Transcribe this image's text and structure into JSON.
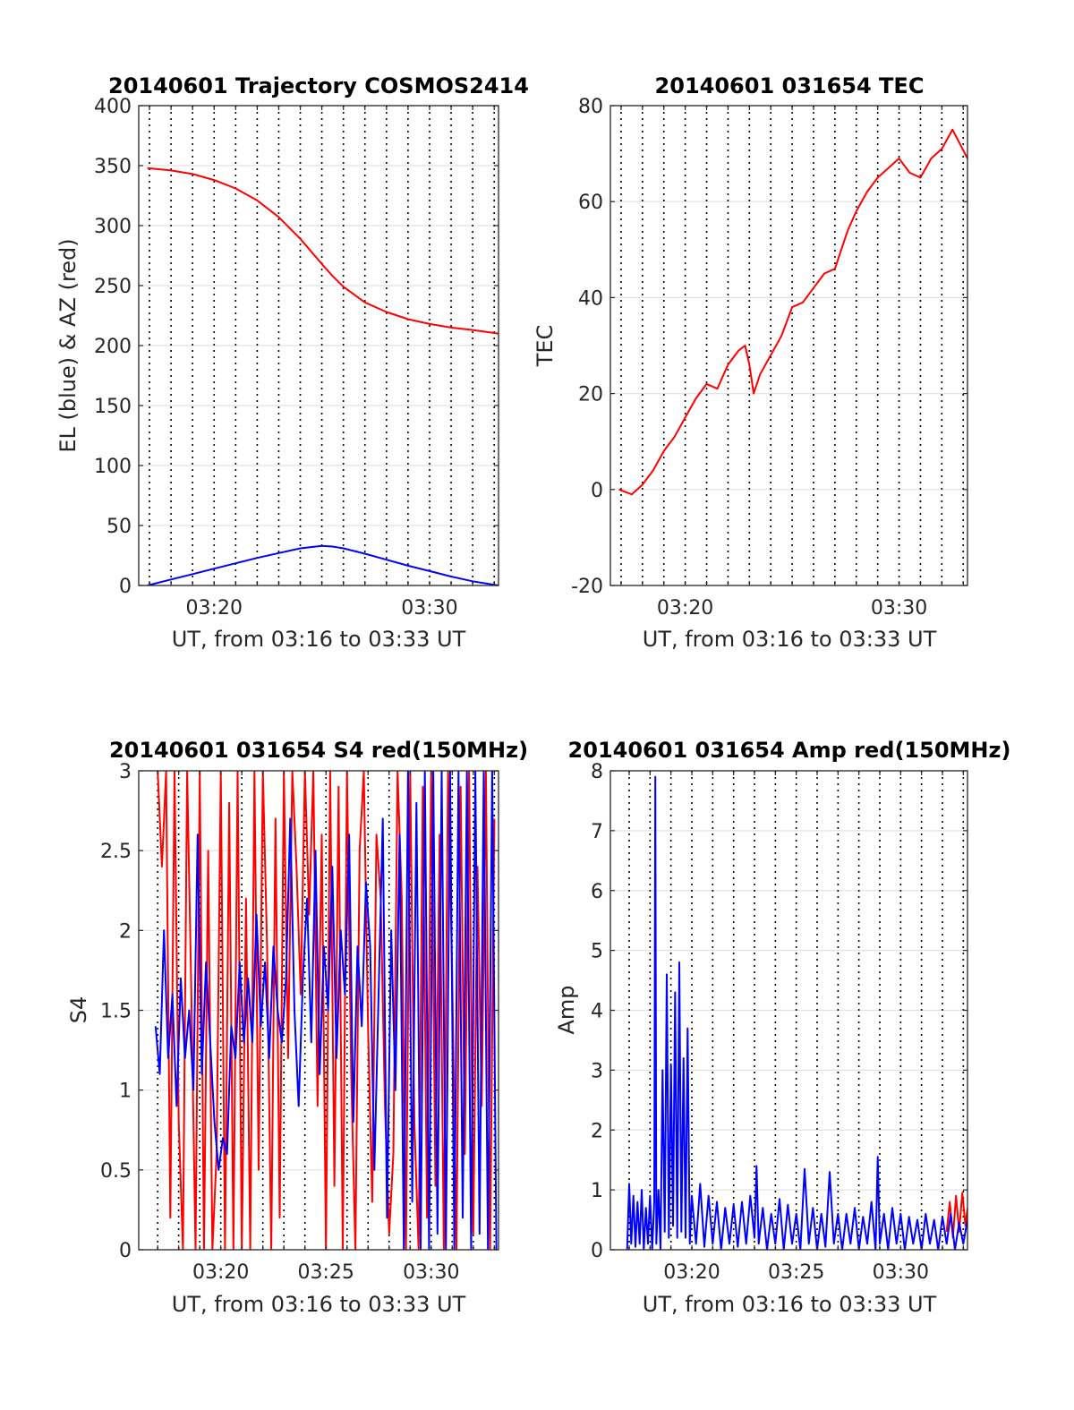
{
  "chart_data": [
    {
      "id": "trajectory",
      "type": "line",
      "title": "20140601 Trajectory COSMOS2414",
      "xlabel": "UT, from 03:16 to 03:33 UT",
      "ylabel": "EL (blue) & AZ (red)",
      "xlim": [
        16.5,
        33.2
      ],
      "ylim": [
        0,
        400
      ],
      "yticks": [
        0,
        50,
        100,
        150,
        200,
        250,
        300,
        350,
        400
      ],
      "xticks": [
        {
          "v": 20,
          "label": "03:20"
        },
        {
          "v": 30,
          "label": "03:30"
        }
      ],
      "dotted_grid_x": [
        17,
        18,
        19,
        20,
        21,
        22,
        23,
        24,
        25,
        26,
        27,
        28,
        29,
        30,
        31,
        32,
        33
      ],
      "grid": true,
      "series": [
        {
          "color": "#ff0000",
          "x": [
            16.9,
            18,
            19,
            20,
            21,
            22,
            23,
            24,
            25,
            25.5,
            26,
            27,
            28,
            29,
            30,
            31,
            32,
            33.2
          ],
          "y": [
            348,
            346,
            343,
            338,
            331,
            321,
            307,
            289,
            268,
            258,
            249,
            236,
            228,
            222,
            218,
            215,
            213,
            210
          ]
        },
        {
          "color": "#0000ff",
          "x": [
            16.9,
            18,
            19,
            20,
            21,
            22,
            23,
            24,
            25,
            25.5,
            26,
            27,
            28,
            29,
            30,
            31,
            32,
            33.2
          ],
          "y": [
            0,
            5,
            9.5,
            14,
            18.5,
            23,
            27,
            31,
            33,
            32.5,
            31,
            26.5,
            21.5,
            16.5,
            12,
            7.5,
            3.5,
            0
          ]
        }
      ]
    },
    {
      "id": "tec",
      "type": "line",
      "title": "20140601 031654 TEC",
      "xlabel": "UT, from 03:16 to 03:33 UT",
      "ylabel": "TEC",
      "xlim": [
        16.5,
        33.2
      ],
      "ylim": [
        -20,
        80
      ],
      "yticks": [
        -20,
        0,
        20,
        40,
        60,
        80
      ],
      "xticks": [
        {
          "v": 20,
          "label": "03:20"
        },
        {
          "v": 30,
          "label": "03:30"
        }
      ],
      "dotted_grid_x": [
        17,
        18,
        19,
        20,
        21,
        22,
        23,
        24,
        25,
        26,
        27,
        28,
        29,
        30,
        31,
        32,
        33
      ],
      "grid": true,
      "series": [
        {
          "color": "#ff0000",
          "x": [
            16.9,
            17.5,
            18,
            18.5,
            19,
            19.5,
            20,
            20.5,
            21,
            21.5,
            22,
            22.5,
            22.8,
            23,
            23.2,
            23.5,
            24,
            24.5,
            25,
            25.5,
            26,
            26.5,
            27,
            27.3,
            27.6,
            28,
            28.5,
            29,
            29.5,
            30,
            30.5,
            31,
            31.5,
            32,
            32.5,
            33.2
          ],
          "y": [
            0,
            -1,
            1,
            4,
            8,
            11,
            15,
            19,
            22,
            21,
            26,
            29,
            30,
            26,
            20,
            24,
            28,
            32,
            38,
            39,
            42,
            45,
            46,
            50,
            54,
            58,
            62,
            65,
            67,
            69,
            66,
            65,
            69,
            71,
            75,
            69
          ]
        }
      ]
    },
    {
      "id": "s4",
      "type": "line",
      "title": "20140601 031654 S4 red(150MHz)",
      "xlabel": "UT, from 03:16 to 03:33 UT",
      "ylabel": "S4",
      "xlim": [
        16.1,
        33.2
      ],
      "ylim": [
        0,
        3
      ],
      "yticks": [
        0,
        0.5,
        1,
        1.5,
        2,
        2.5,
        3
      ],
      "xticks": [
        {
          "v": 20,
          "label": "03:20"
        },
        {
          "v": 25,
          "label": "03:25"
        },
        {
          "v": 30,
          "label": "03:30"
        }
      ],
      "dotted_grid_x": [
        17,
        18,
        19,
        20,
        21,
        22,
        23,
        24,
        25,
        26,
        27,
        28,
        29,
        30,
        31,
        32,
        33
      ],
      "grid": true,
      "series": [
        {
          "color": "#ff0000",
          "x": [
            17.0,
            17.2,
            17.4,
            17.6,
            17.8,
            18.0,
            18.2,
            18.4,
            18.6,
            18.8,
            19.0,
            19.2,
            19.4,
            19.6,
            19.8,
            20.0,
            20.2,
            20.4,
            20.6,
            20.8,
            21.0,
            21.2,
            21.4,
            21.6,
            21.8,
            22.0,
            22.2,
            22.4,
            22.6,
            22.8,
            23.0,
            23.2,
            23.4,
            23.6,
            23.8,
            24.0,
            24.2,
            24.4,
            24.6,
            24.8,
            25.0,
            25.2,
            25.4,
            25.6,
            25.8,
            26.0,
            26.2,
            26.4,
            26.6,
            26.8,
            27.0,
            27.2,
            27.4,
            27.6,
            27.8,
            28.0,
            28.2,
            28.4,
            28.6,
            28.8,
            29.0,
            29.2,
            29.4,
            29.6,
            29.8,
            30.0,
            30.2,
            30.4,
            30.6,
            30.8,
            31.0,
            31.2,
            31.4,
            31.6,
            31.8,
            32.0,
            32.2,
            32.4,
            32.6,
            32.8,
            33.0
          ],
          "y": [
            3,
            2.4,
            3,
            0.2,
            3,
            0.8,
            0,
            3,
            1.6,
            0,
            3,
            0,
            2.5,
            0,
            0.6,
            3,
            0,
            2.8,
            0,
            3,
            0,
            2.2,
            0,
            3,
            0.5,
            3,
            1.9,
            0,
            2.7,
            0.2,
            3,
            1.2,
            3,
            2.4,
            1.6,
            3,
            2.1,
            3,
            0.9,
            2.6,
            0,
            3,
            0.4,
            2.9,
            0,
            3,
            1.1,
            0,
            2.5,
            3,
            1.4,
            0.3,
            2.6,
            2.2,
            0.9,
            0.1,
            0.6,
            3,
            2.2,
            0,
            3,
            0.8,
            0,
            2.9,
            0.2,
            3,
            0.4,
            2.6,
            0,
            3,
            1.7,
            0,
            2.9,
            0.6,
            3,
            0.1,
            2.4,
            0.9,
            3,
            0,
            2.7
          ]
        },
        {
          "color": "#0000ff",
          "x": [
            16.9,
            17.1,
            17.3,
            17.5,
            17.7,
            17.9,
            18.1,
            18.3,
            18.5,
            18.7,
            18.9,
            19.1,
            19.3,
            19.5,
            19.7,
            19.9,
            20.1,
            20.3,
            20.5,
            20.7,
            20.9,
            21.1,
            21.3,
            21.5,
            21.7,
            21.9,
            22.1,
            22.3,
            22.5,
            22.7,
            22.9,
            23.1,
            23.3,
            23.5,
            23.7,
            23.9,
            24.1,
            24.3,
            24.5,
            24.7,
            24.9,
            25.1,
            25.3,
            25.5,
            25.7,
            25.9,
            26.1,
            26.3,
            26.5,
            26.7,
            26.9,
            27.1,
            27.3,
            27.5,
            27.7,
            27.9,
            28.1,
            28.3,
            28.5,
            28.7,
            28.9,
            29.1,
            29.3,
            29.5,
            29.7,
            29.9,
            30.1,
            30.3,
            30.5,
            30.7,
            30.9,
            31.1,
            31.3,
            31.5,
            31.7,
            31.9,
            32.1,
            32.3,
            32.5,
            32.7,
            32.9,
            33.1
          ],
          "y": [
            1.4,
            1.1,
            2,
            1.2,
            1.6,
            0.9,
            1.7,
            1.2,
            1.5,
            1.0,
            2.6,
            1.1,
            1.8,
            1.3,
            0.8,
            0.5,
            0.7,
            0.6,
            1.4,
            1.2,
            1.8,
            1.3,
            1.7,
            1.3,
            2.1,
            1.4,
            1.8,
            1.2,
            1.9,
            1.5,
            1.3,
            1.7,
            2.7,
            1.5,
            0.9,
            1.7,
            2.2,
            1.3,
            2.5,
            1.1,
            1.9,
            1.5,
            2.4,
            1.2,
            2.0,
            1.6,
            2.6,
            0.8,
            1.9,
            1.4,
            2.3,
            1.9,
            0.5,
            1.6,
            2.7,
            0.2,
            2.0,
            1.0,
            2.6,
            0.0,
            3,
            0.3,
            2.8,
            0.0,
            3,
            0.0,
            3,
            0.1,
            3,
            0.0,
            3,
            0.0,
            3,
            0.2,
            3,
            0.0,
            3,
            0.1,
            3,
            0.0,
            3,
            0.0
          ]
        }
      ]
    },
    {
      "id": "amp",
      "type": "line",
      "title": "20140601 031654 Amp red(150MHz)",
      "xlabel": "UT, from 03:16 to 03:33 UT",
      "ylabel": "Amp",
      "xlim": [
        16.1,
        33.2
      ],
      "ylim": [
        0,
        8
      ],
      "yticks": [
        0,
        1,
        2,
        3,
        4,
        5,
        6,
        7,
        8
      ],
      "xticks": [
        {
          "v": 20,
          "label": "03:20"
        },
        {
          "v": 25,
          "label": "03:25"
        },
        {
          "v": 30,
          "label": "03:30"
        }
      ],
      "dotted_grid_x": [
        17,
        18,
        19,
        20,
        21,
        22,
        23,
        24,
        25,
        26,
        27,
        28,
        29,
        30,
        31,
        32,
        33
      ],
      "grid": true,
      "series": [
        {
          "color": "#ff0000",
          "x": [
            32.2,
            32.35,
            32.5,
            32.65,
            32.8,
            32.95,
            33.1,
            33.2
          ],
          "y": [
            0.3,
            0.8,
            0.2,
            0.9,
            0.3,
            0.95,
            0.4,
            0.7
          ]
        },
        {
          "color": "#0000ff",
          "x": [
            16.9,
            17.0,
            17.1,
            17.2,
            17.3,
            17.4,
            17.5,
            17.6,
            17.7,
            17.8,
            17.9,
            18.0,
            18.1,
            18.2,
            18.25,
            18.3,
            18.4,
            18.5,
            18.6,
            18.7,
            18.8,
            18.9,
            19.0,
            19.1,
            19.2,
            19.3,
            19.4,
            19.5,
            19.6,
            19.7,
            19.8,
            19.9,
            20.0,
            20.2,
            20.4,
            20.6,
            20.8,
            21.0,
            21.2,
            21.4,
            21.6,
            21.8,
            22.0,
            22.2,
            22.4,
            22.6,
            22.8,
            23.0,
            23.1,
            23.2,
            23.4,
            23.6,
            23.8,
            24.0,
            24.2,
            24.4,
            24.6,
            24.8,
            25.0,
            25.2,
            25.4,
            25.6,
            25.8,
            26.0,
            26.2,
            26.4,
            26.6,
            26.8,
            27.0,
            27.2,
            27.4,
            27.6,
            27.8,
            28.0,
            28.2,
            28.4,
            28.6,
            28.8,
            28.9,
            29.0,
            29.2,
            29.4,
            29.6,
            29.8,
            30.0,
            30.2,
            30.4,
            30.6,
            30.8,
            31.0,
            31.2,
            31.4,
            31.6,
            31.8,
            32.0,
            32.2,
            32.4,
            32.6,
            32.8,
            33.0,
            33.2
          ],
          "y": [
            0,
            1.1,
            0.1,
            0.9,
            0.05,
            0.8,
            0.1,
            1.0,
            0.0,
            0.7,
            0.1,
            0.9,
            0.0,
            0.8,
            7.9,
            0.1,
            1.0,
            0.0,
            3.0,
            0.3,
            4.6,
            0.2,
            3.1,
            0.4,
            4.3,
            0.2,
            4.8,
            0.3,
            3.2,
            0.2,
            3.7,
            0.1,
            0.9,
            0.1,
            1.1,
            0.05,
            0.9,
            0.1,
            0.8,
            0.0,
            0.7,
            0.1,
            0.75,
            0.05,
            0.8,
            0.1,
            0.9,
            0.2,
            1.4,
            0.1,
            0.7,
            0.0,
            0.6,
            0.1,
            0.85,
            0.0,
            0.75,
            0.1,
            0.6,
            0.0,
            1.35,
            0.1,
            0.7,
            0.0,
            0.6,
            0.05,
            1.3,
            0.1,
            0.6,
            0.0,
            0.6,
            0.1,
            0.7,
            0.0,
            0.55,
            0.1,
            0.8,
            0.0,
            1.55,
            0.1,
            0.6,
            0.0,
            0.7,
            0.1,
            0.6,
            0.0,
            0.55,
            0.1,
            0.5,
            0.0,
            0.6,
            0.1,
            0.5,
            0.0,
            0.55,
            0.1,
            0.6,
            0.0,
            0.45,
            0.1,
            0.5
          ]
        }
      ]
    }
  ]
}
